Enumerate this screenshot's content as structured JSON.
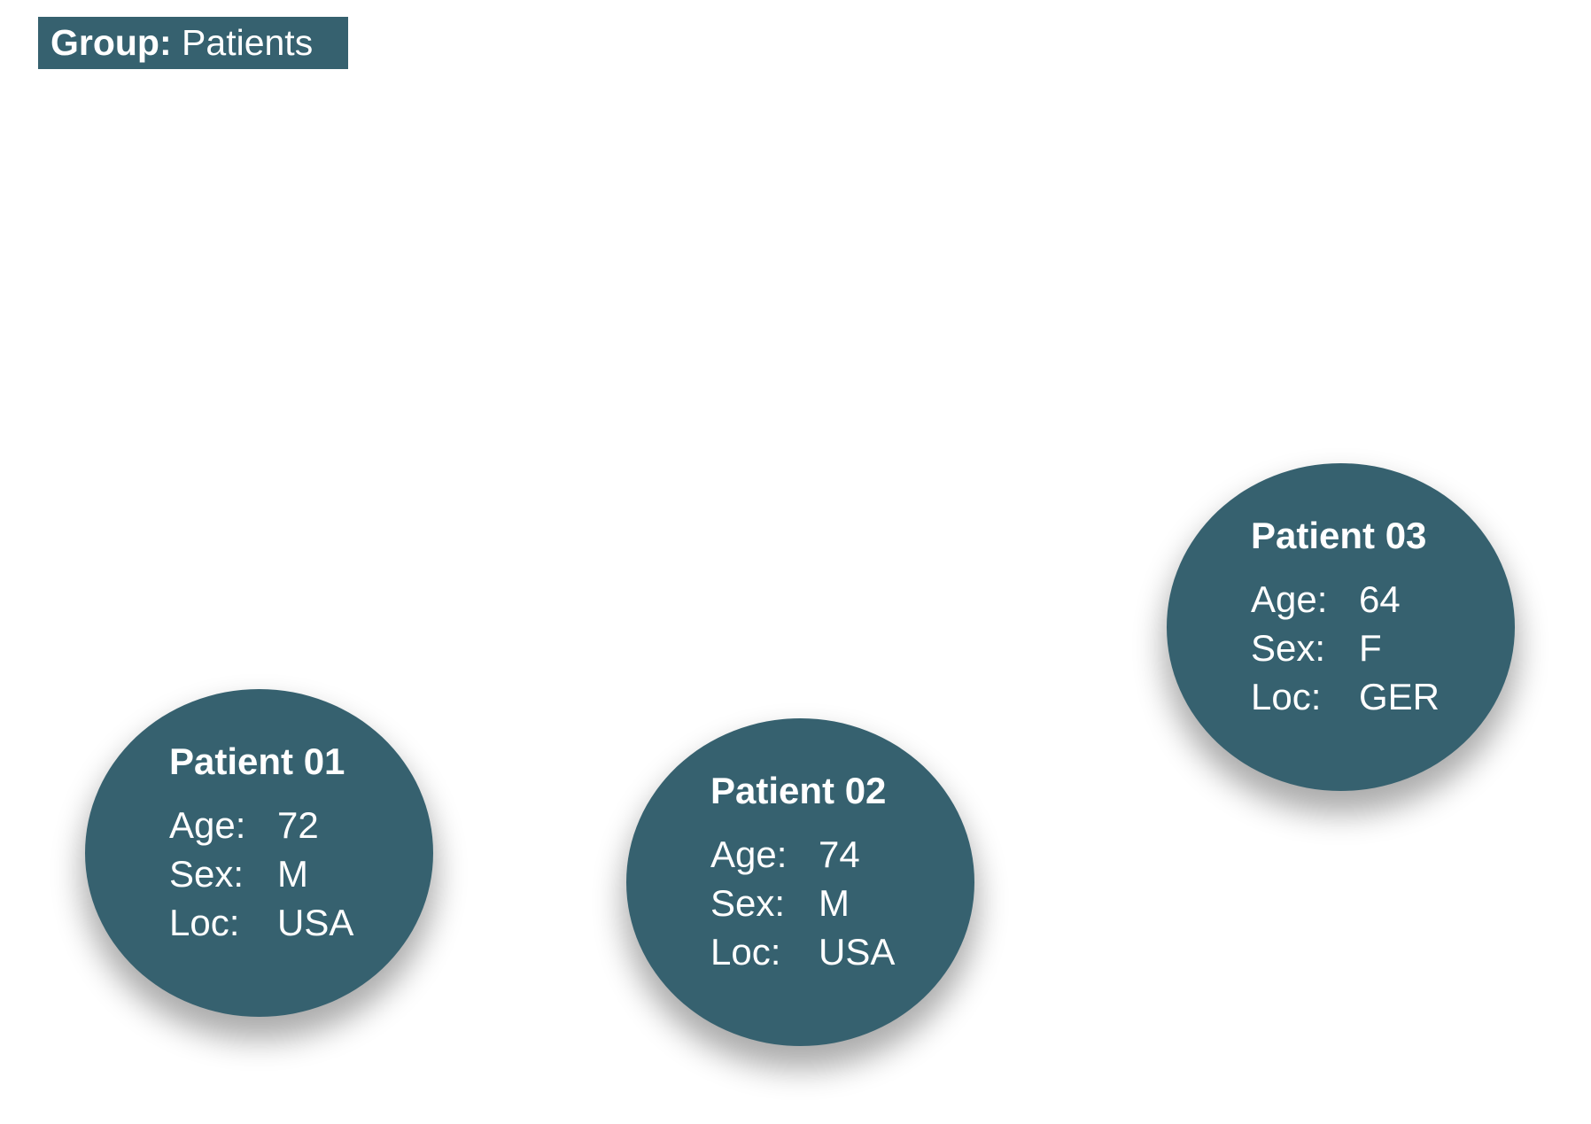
{
  "group": {
    "key": "Group:",
    "value": "Patients"
  },
  "colors": {
    "node_fill": "#36616F",
    "label_fill": "#36616F",
    "text": "#FFFFFF",
    "background": "#FFFFFF"
  },
  "patients": [
    {
      "name": "Patient 01",
      "age_label": "Age:",
      "age": "72",
      "sex_label": "Sex:",
      "sex": "M",
      "loc_label": "Loc:",
      "loc": "USA"
    },
    {
      "name": "Patient 02",
      "age_label": "Age:",
      "age": "74",
      "sex_label": "Sex:",
      "sex": "M",
      "loc_label": "Loc:",
      "loc": "USA"
    },
    {
      "name": "Patient 03",
      "age_label": "Age:",
      "age": "64",
      "sex_label": "Sex:",
      "sex": "F",
      "loc_label": "Loc:",
      "loc": "GER"
    }
  ]
}
